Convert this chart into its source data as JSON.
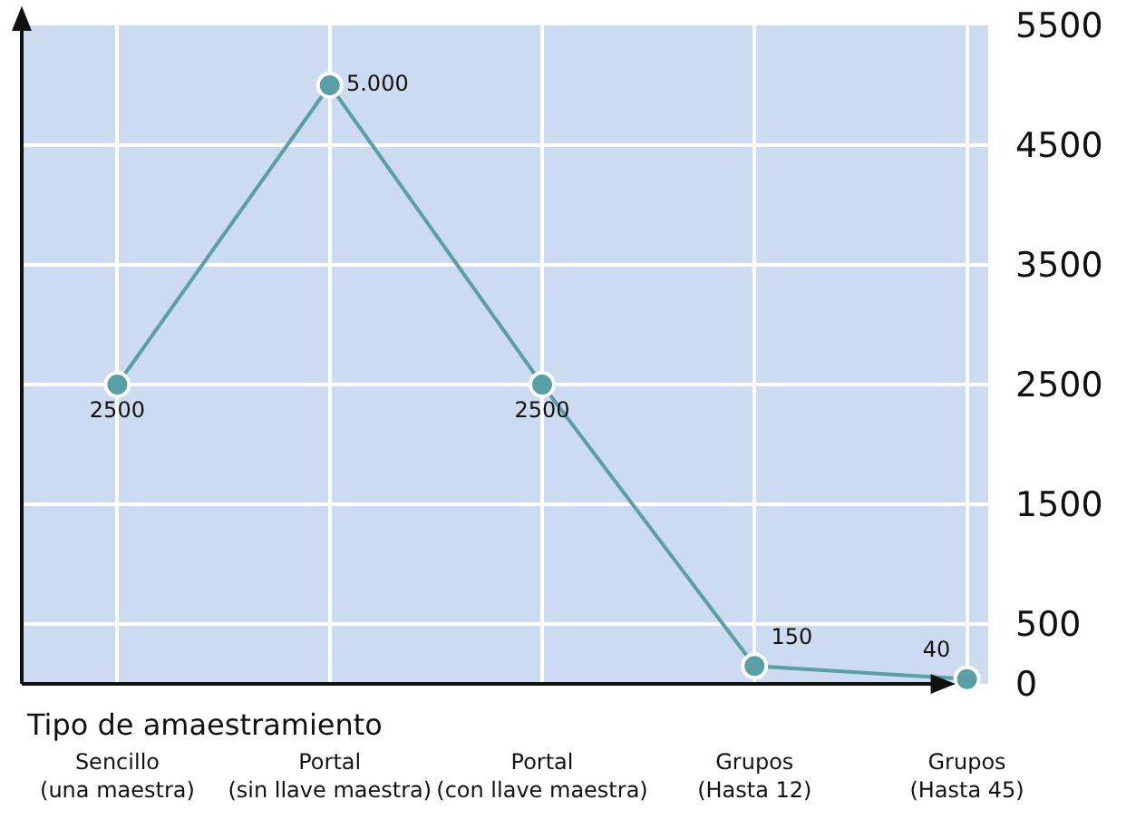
{
  "chart_data": {
    "type": "line",
    "xlabel": "Tipo de amaestramiento",
    "categories": [
      "Sencillo\n(una maestra)",
      "Portal\n(sin llave maestra)",
      "Portal\n(con llave maestra)",
      "Grupos\n(Hasta 12)",
      "Grupos\n(Hasta 45)"
    ],
    "series": [
      {
        "color": "#5a9ea6",
        "values": [
          2500,
          5000,
          2500,
          150,
          40
        ],
        "value_labels": [
          "2500",
          "5.000",
          "2500",
          "150",
          "40"
        ]
      }
    ],
    "ylim": [
      0,
      5500
    ],
    "yticks": [
      0,
      500,
      1500,
      2500,
      3500,
      4500,
      5500
    ],
    "grid": true,
    "marker": "circle",
    "line_style": "solid"
  }
}
